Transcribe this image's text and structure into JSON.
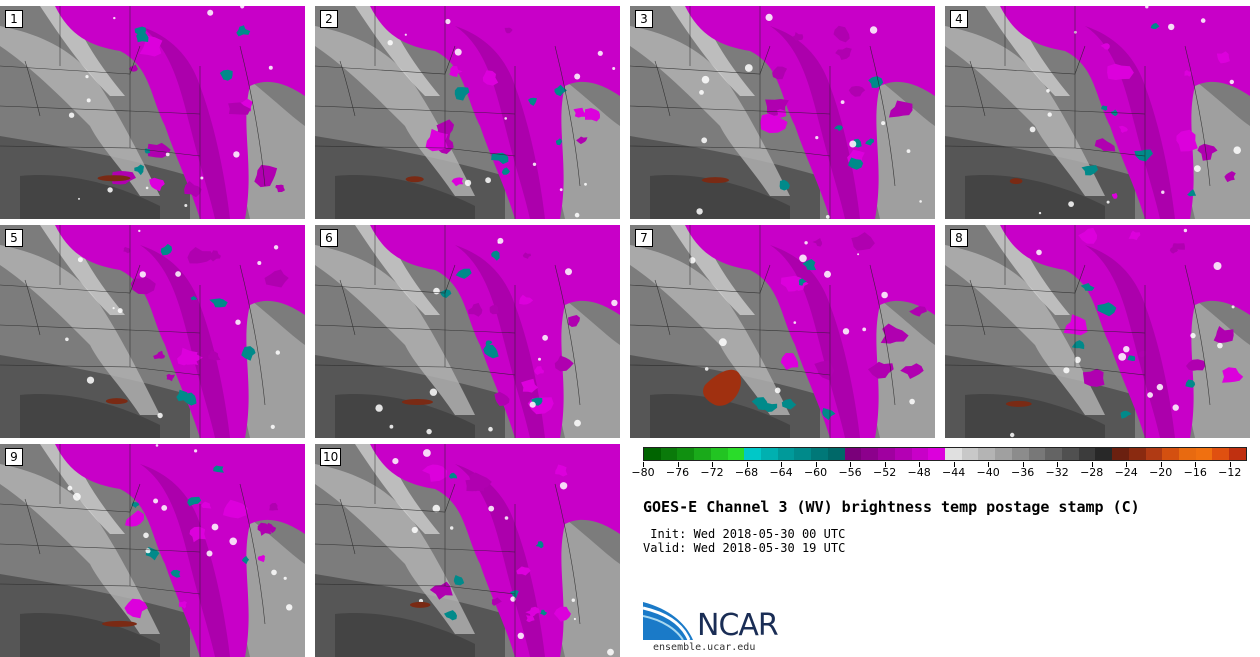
{
  "panels": [
    {
      "label": "1"
    },
    {
      "label": "2"
    },
    {
      "label": "3"
    },
    {
      "label": "4"
    },
    {
      "label": "5"
    },
    {
      "label": "6"
    },
    {
      "label": "7"
    },
    {
      "label": "8"
    },
    {
      "label": "9"
    },
    {
      "label": "10"
    }
  ],
  "colorbar": {
    "ticks": [
      "−80",
      "−76",
      "−72",
      "−68",
      "−64",
      "−60",
      "−56",
      "−52",
      "−48",
      "−44",
      "−40",
      "−36",
      "−32",
      "−28",
      "−24",
      "−20",
      "−16",
      "−12"
    ],
    "colors": [
      "#006400",
      "#0a7a0a",
      "#109010",
      "#1aaa1a",
      "#22c422",
      "#2adc2a",
      "#00c8c8",
      "#00b0b0",
      "#009a9a",
      "#008a8a",
      "#007878",
      "#006868",
      "#7a007a",
      "#8c008c",
      "#a000a0",
      "#b400b4",
      "#c800c8",
      "#dc00dc",
      "#e0e0e0",
      "#c8c8c8",
      "#b4b4b4",
      "#a0a0a0",
      "#8c8c8c",
      "#787878",
      "#646464",
      "#505050",
      "#3c3c3c",
      "#282828",
      "#6b2010",
      "#8a2a10",
      "#b03a14",
      "#d45010",
      "#e86a10",
      "#f07010",
      "#e05010",
      "#c03010"
    ],
    "range": [
      -80,
      -10
    ]
  },
  "title": "GOES-E Channel 3 (WV) brightness temp postage stamp (C)",
  "init_line": " Init: Wed 2018-05-30 00 UTC",
  "valid_line": "Valid: Wed 2018-05-30 19 UTC",
  "logo": {
    "text": "NCAR",
    "url": "ensemble.ucar.edu"
  }
}
